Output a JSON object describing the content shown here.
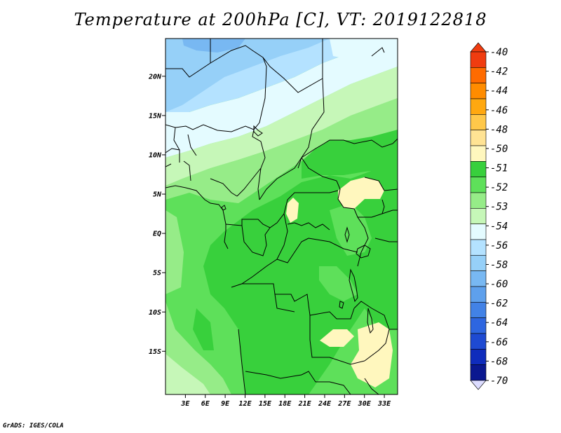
{
  "title": "Temperature at 200hPa [C], VT: 2019122818",
  "credit": "GrADS: IGES/COLA",
  "map": {
    "variable": "Temperature",
    "level": "200hPa",
    "units": "C",
    "valid_time": "2019122818",
    "lat_range": [
      -20.5,
      24.8
    ],
    "lon_range": [
      0,
      35
    ],
    "lat_ticks": [
      {
        "value": 20,
        "label": "20N"
      },
      {
        "value": 15,
        "label": "15N"
      },
      {
        "value": 10,
        "label": "10N"
      },
      {
        "value": 5,
        "label": "5N"
      },
      {
        "value": 0,
        "label": "EQ"
      },
      {
        "value": -5,
        "label": "5S"
      },
      {
        "value": -10,
        "label": "10S"
      },
      {
        "value": -15,
        "label": "15S"
      }
    ],
    "lon_ticks": [
      {
        "value": 3,
        "label": "3E"
      },
      {
        "value": 6,
        "label": "6E"
      },
      {
        "value": 9,
        "label": "9E"
      },
      {
        "value": 12,
        "label": "12E"
      },
      {
        "value": 15,
        "label": "15E"
      },
      {
        "value": 18,
        "label": "18E"
      },
      {
        "value": 21,
        "label": "21E"
      },
      {
        "value": 24,
        "label": "24E"
      },
      {
        "value": 27,
        "label": "27E"
      },
      {
        "value": 30,
        "label": "30E"
      },
      {
        "value": 33,
        "label": "33E"
      }
    ]
  },
  "colorbar": {
    "labels": [
      "-40",
      "-42",
      "-44",
      "-46",
      "-48",
      "-50",
      "-51",
      "-52",
      "-53",
      "-54",
      "-56",
      "-58",
      "-60",
      "-62",
      "-64",
      "-66",
      "-68",
      "-70"
    ],
    "colors": [
      "#d4f0ff",
      "#f03c10",
      "#ff6b00",
      "#ff8c00",
      "#ffa810",
      "#ffc84a",
      "#ffe394",
      "#fff7be",
      "#38d03c",
      "#5ee05a",
      "#96ec88",
      "#c6f7b8",
      "#e4fbff",
      "#b4e2ff",
      "#96d0f8",
      "#78b8f2",
      "#5ea0ec",
      "#4282e6",
      "#2e66e0",
      "#1e4ad2",
      "#0f2cbc",
      "#0a1890",
      "#dcdcff"
    ]
  },
  "fill_colors": {
    "green_dark": "#38d03c",
    "green_mid": "#5ee05a",
    "green_light": "#96ec88",
    "green_pale": "#c6f7b8",
    "cyan_pale": "#e4fbff",
    "blue_pale": "#b4e2ff",
    "blue_mid": "#96d0f8",
    "blue_dark": "#78b8f2",
    "yellow": "#fff7be"
  }
}
